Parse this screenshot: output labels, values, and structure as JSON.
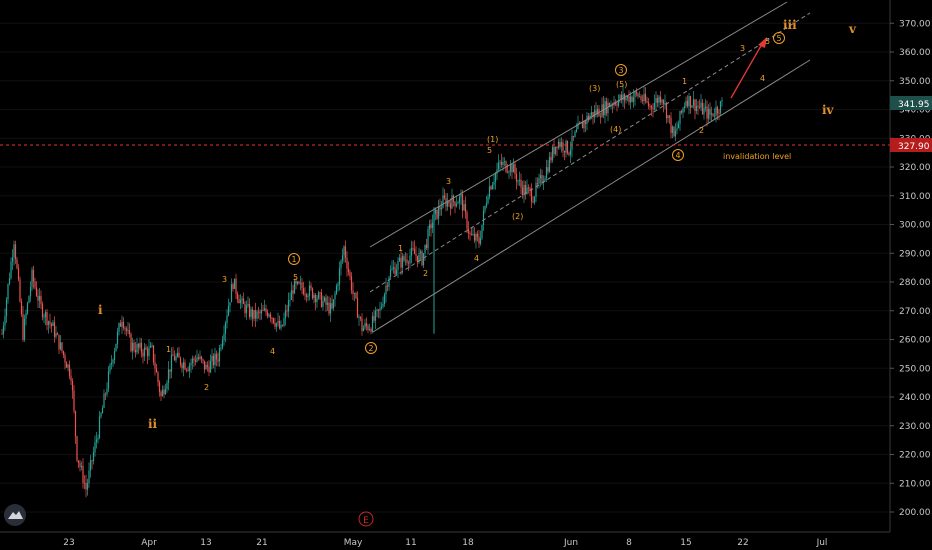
{
  "chart_data": {
    "type": "candlestick",
    "colors": {
      "background": "#000000",
      "up": "#26a69a",
      "down": "#ef5350",
      "annotation": "#f0a020",
      "invalidation": "#e53935",
      "channel": "#8a8a8a",
      "price_tag": "#1f4f4a",
      "invalidation_tag": "#b71c1c"
    },
    "ylim": [
      190,
      378
    ],
    "y_ticks": [
      "200.00",
      "210.00",
      "220.00",
      "230.00",
      "240.00",
      "250.00",
      "260.00",
      "270.00",
      "280.00",
      "290.00",
      "300.00",
      "310.00",
      "320.00",
      "330.00",
      "340.00",
      "350.00",
      "360.00",
      "370.00"
    ],
    "x_ticks": [
      "23",
      "Apr",
      "13",
      "21",
      "May",
      "11",
      "18",
      "Jun",
      "8",
      "15",
      "22",
      "Jul"
    ],
    "last_price": "341.95",
    "invalidation_price": "327.90",
    "invalidation_text": "invalidation level",
    "logo_icon": "tradingview-cloud-icon",
    "event_marker": "E",
    "labels": {
      "roman": [
        "i",
        "ii",
        "iii",
        "iv",
        "v"
      ],
      "circled": [
        "1",
        "2",
        "3",
        "4",
        "5"
      ],
      "minor": [
        "1",
        "2",
        "3",
        "4",
        "5"
      ],
      "paren": [
        "(1)",
        "(2)",
        "(3)",
        "(4)",
        "(5)"
      ],
      "projection": [
        "3",
        "4",
        "5"
      ]
    },
    "price_path": [
      {
        "t": 0,
        "p": 262
      },
      {
        "t": 4,
        "p": 295
      },
      {
        "t": 7,
        "p": 262
      },
      {
        "t": 10,
        "p": 282
      },
      {
        "t": 13,
        "p": 271
      },
      {
        "t": 17,
        "p": 264
      },
      {
        "t": 20,
        "p": 256
      },
      {
        "t": 23,
        "p": 248
      },
      {
        "t": 25,
        "p": 220
      },
      {
        "t": 28,
        "p": 208
      },
      {
        "t": 32,
        "p": 228
      },
      {
        "t": 37,
        "p": 255
      },
      {
        "t": 40,
        "p": 268
      },
      {
        "t": 43,
        "p": 258
      },
      {
        "t": 47,
        "p": 256
      },
      {
        "t": 50,
        "p": 256
      },
      {
        "t": 53,
        "p": 240
      },
      {
        "t": 57,
        "p": 254
      },
      {
        "t": 62,
        "p": 251
      },
      {
        "t": 65,
        "p": 254
      },
      {
        "t": 68,
        "p": 250
      },
      {
        "t": 72,
        "p": 254
      },
      {
        "t": 77,
        "p": 280
      },
      {
        "t": 80,
        "p": 272
      },
      {
        "t": 84,
        "p": 268
      },
      {
        "t": 89,
        "p": 270
      },
      {
        "t": 93,
        "p": 263
      },
      {
        "t": 97,
        "p": 278
      },
      {
        "t": 100,
        "p": 278
      },
      {
        "t": 104,
        "p": 276
      },
      {
        "t": 107,
        "p": 273
      },
      {
        "t": 110,
        "p": 270
      },
      {
        "t": 114,
        "p": 292
      },
      {
        "t": 117,
        "p": 276
      },
      {
        "t": 120,
        "p": 264
      },
      {
        "t": 123,
        "p": 265
      },
      {
        "t": 126,
        "p": 270
      },
      {
        "t": 129,
        "p": 283
      },
      {
        "t": 133,
        "p": 287
      },
      {
        "t": 137,
        "p": 290
      },
      {
        "t": 140,
        "p": 288
      },
      {
        "t": 143,
        "p": 300
      },
      {
        "t": 147,
        "p": 308
      },
      {
        "t": 150,
        "p": 308
      },
      {
        "t": 153,
        "p": 309
      },
      {
        "t": 156,
        "p": 296
      },
      {
        "t": 159,
        "p": 294
      },
      {
        "t": 162,
        "p": 312
      },
      {
        "t": 166,
        "p": 321
      },
      {
        "t": 170,
        "p": 320
      },
      {
        "t": 173,
        "p": 313
      },
      {
        "t": 177,
        "p": 310
      },
      {
        "t": 181,
        "p": 318
      },
      {
        "t": 185,
        "p": 329
      },
      {
        "t": 189,
        "p": 326
      },
      {
        "t": 192,
        "p": 333
      },
      {
        "t": 196,
        "p": 338
      },
      {
        "t": 200,
        "p": 340
      },
      {
        "t": 204,
        "p": 343
      },
      {
        "t": 208,
        "p": 344
      },
      {
        "t": 212,
        "p": 345
      },
      {
        "t": 216,
        "p": 341
      },
      {
        "t": 220,
        "p": 345
      },
      {
        "t": 224,
        "p": 330
      },
      {
        "t": 228,
        "p": 344
      },
      {
        "t": 232,
        "p": 341
      },
      {
        "t": 236,
        "p": 338
      },
      {
        "t": 240,
        "p": 342
      }
    ]
  }
}
